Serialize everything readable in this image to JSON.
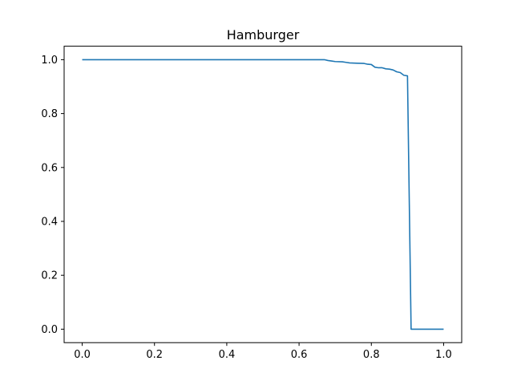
{
  "chart_data": {
    "type": "line",
    "title": "Hamburger",
    "xlabel": "",
    "ylabel": "",
    "xlim": [
      -0.05,
      1.05
    ],
    "ylim": [
      -0.05,
      1.05
    ],
    "grid": false,
    "x_ticks": [
      "0.0",
      "0.2",
      "0.4",
      "0.6",
      "0.8",
      "1.0"
    ],
    "y_ticks": [
      "0.0",
      "0.2",
      "0.4",
      "0.6",
      "0.8",
      "1.0"
    ],
    "series": [
      {
        "color": "#1f77b4",
        "x": [
          0.0,
          0.67,
          0.68,
          0.69,
          0.7,
          0.72,
          0.73,
          0.74,
          0.76,
          0.78,
          0.79,
          0.8,
          0.81,
          0.82,
          0.83,
          0.84,
          0.85,
          0.86,
          0.87,
          0.88,
          0.89,
          0.9,
          0.91,
          0.92,
          1.0
        ],
        "y": [
          1.0,
          1.0,
          0.997,
          0.995,
          0.993,
          0.992,
          0.99,
          0.988,
          0.987,
          0.986,
          0.983,
          0.982,
          0.972,
          0.97,
          0.97,
          0.966,
          0.965,
          0.962,
          0.955,
          0.952,
          0.942,
          0.94,
          0.0,
          0.0,
          0.0
        ]
      }
    ]
  }
}
